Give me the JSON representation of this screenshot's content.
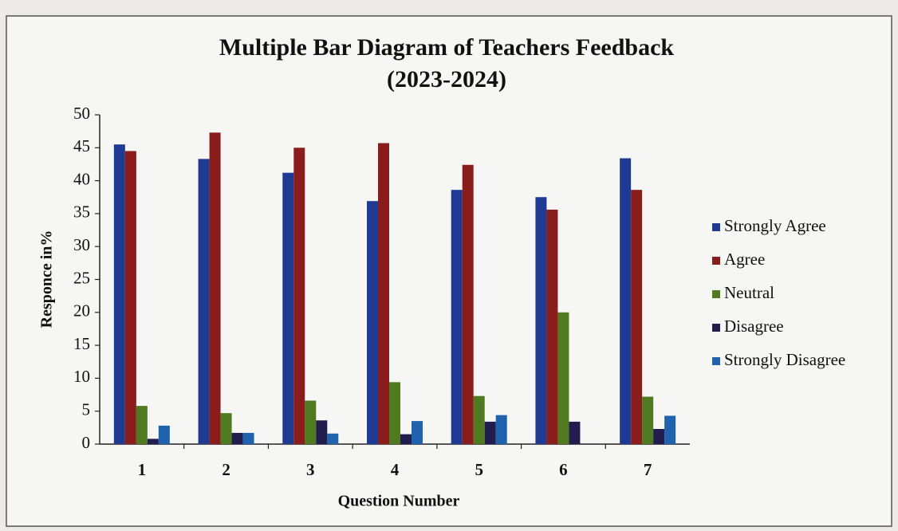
{
  "chart_data": {
    "type": "bar",
    "title": [
      "Multiple Bar Diagram of Teachers Feedback",
      "(2023-2024)"
    ],
    "x_label": "Question Number",
    "y_label": "Responce in%",
    "categories": [
      "1",
      "2",
      "3",
      "4",
      "5",
      "6",
      "7"
    ],
    "series": [
      {
        "name": "Strongly Agree",
        "color": "#1f3a93",
        "values": [
          45.5,
          43.3,
          41.2,
          36.9,
          38.6,
          37.5,
          43.4
        ]
      },
      {
        "name": "Agree",
        "color": "#8b1c1c",
        "values": [
          44.5,
          47.3,
          45,
          45.7,
          42.4,
          35.6,
          38.6
        ]
      },
      {
        "name": "Neutral",
        "color": "#4f7a1f",
        "values": [
          5.8,
          4.7,
          6.6,
          9.4,
          7.3,
          20,
          7.2
        ]
      },
      {
        "name": "Disagree",
        "color": "#221d4f",
        "values": [
          0.8,
          1.7,
          3.6,
          1.5,
          3.4,
          3.4,
          2.3
        ]
      },
      {
        "name": "Strongly Disagree",
        "color": "#1f62ad",
        "values": [
          2.8,
          1.7,
          1.6,
          3.5,
          4.4,
          0,
          4.3
        ]
      }
    ],
    "ylim": [
      0,
      50
    ],
    "yticks": [
      0,
      5,
      10,
      15,
      20,
      25,
      30,
      35,
      40,
      45,
      50
    ],
    "grid": false,
    "legend": "right"
  }
}
